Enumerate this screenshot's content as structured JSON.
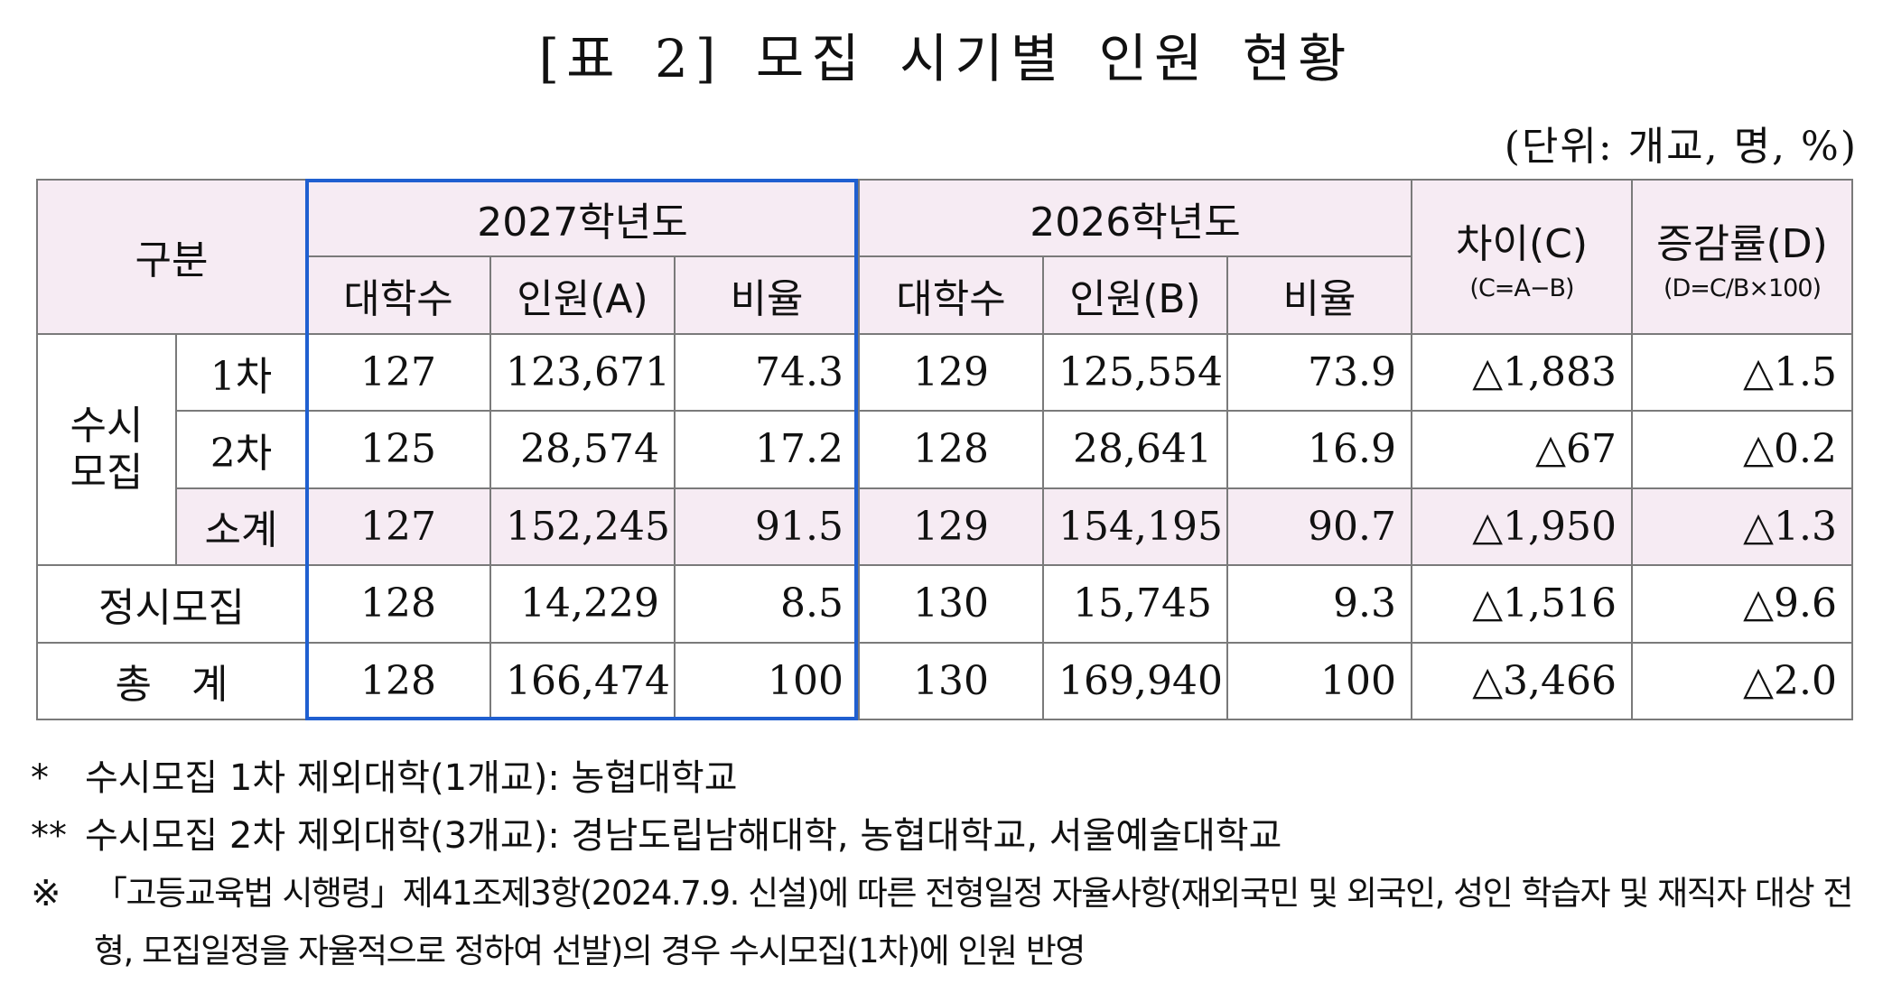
{
  "title": "[표 2] 모집 시기별 인원 현황",
  "unit": "(단위: 개교, 명, %)",
  "headers": {
    "category": "구분",
    "year2027": "2027학년도",
    "year2026": "2026학년도",
    "diff": "차이(C)",
    "diff_formula": "(C=A−B)",
    "rate": "증감률(D)",
    "rate_formula": "(D=C/B×100)",
    "sub_2027": [
      "대학수",
      "인원(A)",
      "비율"
    ],
    "sub_2026": [
      "대학수",
      "인원(B)",
      "비율"
    ]
  },
  "group_susi": "수시\n모집",
  "rows": [
    {
      "label": "1차",
      "u27": "127",
      "p27": "123,671",
      "r27": "74.3",
      "u26": "129",
      "p26": "125,554",
      "r26": "73.9",
      "diff": "1,883",
      "rate": "1.5"
    },
    {
      "label": "2차",
      "u27": "125",
      "p27": "28,574",
      "r27": "17.2",
      "u26": "128",
      "p26": "28,641",
      "r26": "16.9",
      "diff": "67",
      "rate": "0.2"
    },
    {
      "label": "소계",
      "u27": "127",
      "p27": "152,245",
      "r27": "91.5",
      "u26": "129",
      "p26": "154,195",
      "r26": "90.7",
      "diff": "1,950",
      "rate": "1.3"
    },
    {
      "label": "정시모집",
      "u27": "128",
      "p27": "14,229",
      "r27": "8.5",
      "u26": "130",
      "p26": "15,745",
      "r26": "9.3",
      "diff": "1,516",
      "rate": "9.6"
    },
    {
      "label": "총 계",
      "u27": "128",
      "p27": "166,474",
      "r27": "100",
      "u26": "130",
      "p26": "169,940",
      "r26": "100",
      "diff": "3,466",
      "rate": "2.0"
    }
  ],
  "notes": [
    {
      "mark": "*",
      "text": "수시모집 1차 제외대학(1개교): 농협대학교"
    },
    {
      "mark": "**",
      "text": "수시모집 2차 제외대학(3개교): 경남도립남해대학, 농협대학교, 서울예술대학교"
    },
    {
      "mark": "※",
      "text": "「고등교육법 시행령」제41조제3항(2024.7.9. 신설)에 따른 전형일정 자율사항(재외국민 및 외국인, 성인 학습자 및 재직자 대상 전형, 모집일정을 자율적으로 정하여 선발)의 경우 수시모집(1차)에 인원 반영"
    }
  ],
  "colors": {
    "header_bg": "#f6ebf3",
    "highlight_border": "#1f5fd0"
  }
}
